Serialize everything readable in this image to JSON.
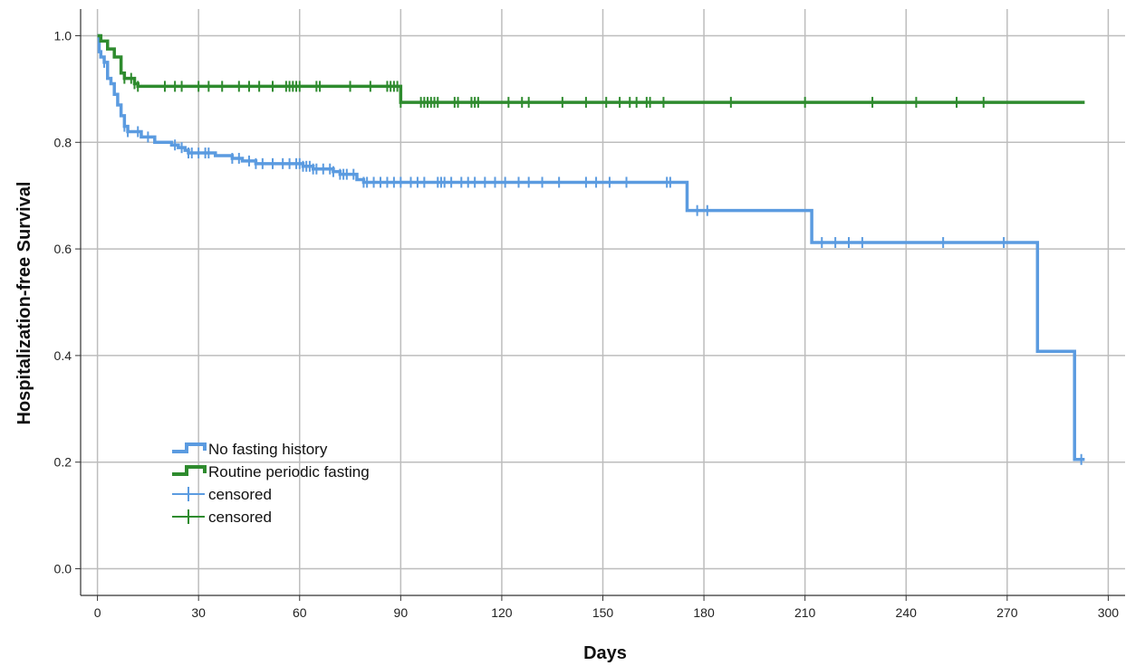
{
  "chart_data": {
    "type": "line",
    "subtype": "kaplan-meier-step",
    "xlabel": "Days",
    "ylabel": "Hospitalization-free Survival",
    "xlim": [
      -5,
      305
    ],
    "ylim": [
      -0.05,
      1.05
    ],
    "x_ticks": [
      0,
      30,
      60,
      90,
      120,
      150,
      180,
      210,
      240,
      270,
      300
    ],
    "y_ticks": [
      0.0,
      0.2,
      0.4,
      0.6,
      0.8,
      1.0
    ],
    "y_tick_labels": [
      "0.0",
      "0.2",
      "0.4",
      "0.6",
      "0.8",
      "1.0"
    ],
    "grid": true,
    "legend_position": "lower-left",
    "legend": [
      {
        "label": "No fasting history",
        "kind": "line",
        "color": "#5b9be0"
      },
      {
        "label": "Routine periodic fasting",
        "kind": "line",
        "color": "#2e8b2e"
      },
      {
        "label": "censored",
        "kind": "censor",
        "color": "#5b9be0"
      },
      {
        "label": "censored",
        "kind": "censor",
        "color": "#2e8b2e"
      }
    ],
    "series": [
      {
        "name": "No fasting history",
        "color": "#5b9be0",
        "steps": [
          [
            0,
            1.0
          ],
          [
            0.5,
            0.97
          ],
          [
            1,
            0.96
          ],
          [
            2,
            0.95
          ],
          [
            3,
            0.92
          ],
          [
            4,
            0.91
          ],
          [
            5,
            0.89
          ],
          [
            6,
            0.87
          ],
          [
            7,
            0.85
          ],
          [
            8,
            0.83
          ],
          [
            9,
            0.82
          ],
          [
            13,
            0.81
          ],
          [
            17,
            0.8
          ],
          [
            22,
            0.795
          ],
          [
            24,
            0.79
          ],
          [
            26,
            0.785
          ],
          [
            27,
            0.78
          ],
          [
            33,
            0.78
          ],
          [
            35,
            0.775
          ],
          [
            40,
            0.77
          ],
          [
            43,
            0.765
          ],
          [
            47,
            0.76
          ],
          [
            58,
            0.76
          ],
          [
            61,
            0.755
          ],
          [
            64,
            0.75
          ],
          [
            70,
            0.745
          ],
          [
            72,
            0.74
          ],
          [
            77,
            0.73
          ],
          [
            79,
            0.725
          ],
          [
            175,
            0.672
          ],
          [
            212,
            0.612
          ],
          [
            279,
            0.408
          ],
          [
            290,
            0.205
          ],
          [
            293,
            0.205
          ]
        ],
        "censored_x": [
          2,
          8,
          9,
          12,
          15,
          23,
          25,
          27,
          28,
          30,
          32,
          33,
          40,
          42,
          45,
          47,
          49,
          52,
          55,
          57,
          59,
          60,
          61,
          62,
          63,
          64,
          65,
          67,
          69,
          70,
          72,
          73,
          74,
          76,
          79,
          80,
          82,
          84,
          86,
          88,
          90,
          93,
          95,
          97,
          101,
          102,
          103,
          105,
          108,
          110,
          112,
          115,
          118,
          121,
          125,
          128,
          132,
          137,
          145,
          148,
          152,
          157,
          169,
          170,
          178,
          181,
          215,
          219,
          223,
          227,
          251,
          269,
          292
        ]
      },
      {
        "name": "Routine periodic fasting",
        "color": "#2e8b2e",
        "steps": [
          [
            0,
            1.0
          ],
          [
            1,
            0.99
          ],
          [
            3,
            0.975
          ],
          [
            5,
            0.96
          ],
          [
            7,
            0.93
          ],
          [
            8,
            0.92
          ],
          [
            11,
            0.91
          ],
          [
            12,
            0.905
          ],
          [
            90,
            0.875
          ],
          [
            293,
            0.875
          ]
        ],
        "censored_x": [
          8,
          10,
          11,
          12,
          20,
          23,
          25,
          30,
          33,
          37,
          42,
          45,
          48,
          52,
          56,
          57,
          58,
          59,
          60,
          65,
          66,
          75,
          81,
          86,
          87,
          88,
          89,
          90,
          96,
          97,
          98,
          99,
          100,
          101,
          106,
          107,
          111,
          112,
          113,
          122,
          126,
          128,
          138,
          145,
          151,
          155,
          158,
          160,
          163,
          164,
          168,
          188,
          210,
          230,
          243,
          255,
          263
        ]
      }
    ]
  }
}
